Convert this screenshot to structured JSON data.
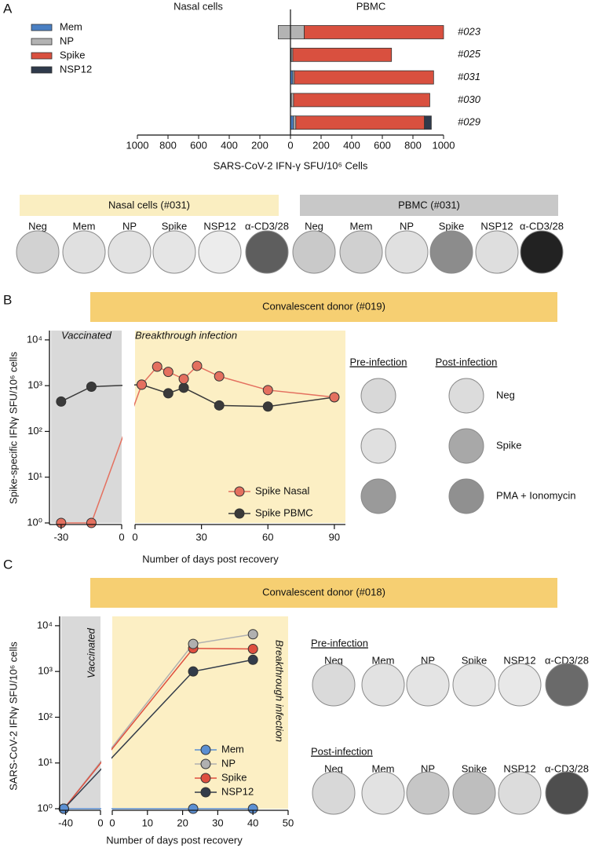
{
  "panel_labels": [
    "A",
    "B",
    "C"
  ],
  "chart_data": [
    {
      "type": "diverging_bar",
      "side_titles": [
        "Nasal cells",
        "PBMC"
      ],
      "categories": [
        "#023",
        "#025",
        "#031",
        "#030",
        "#029"
      ],
      "xlabel": "SARS-CoV-2 IFN-γ SFU/10⁶ Cells",
      "xlim": [
        -1000,
        1000
      ],
      "xticks": [
        {
          "value": -1000,
          "label": "1000"
        },
        {
          "value": -800,
          "label": "800"
        },
        {
          "value": -600,
          "label": "600"
        },
        {
          "value": -400,
          "label": "400"
        },
        {
          "value": -200,
          "label": "200"
        },
        0,
        200,
        400,
        600,
        800,
        1000
      ],
      "legend": "upper left",
      "series": [
        {
          "name": "Mem",
          "color": "#4a7fc3",
          "values": [
            0,
            5,
            15,
            5,
            20
          ],
          "nasal_values": [
            0,
            0,
            0,
            0,
            0
          ]
        },
        {
          "name": "NP",
          "color": "#b3b3b3",
          "values": [
            90,
            10,
            10,
            15,
            15
          ],
          "nasal_values": [
            80,
            0,
            0,
            0,
            0
          ]
        },
        {
          "name": "Spike",
          "color": "#d9503f",
          "values": [
            910,
            645,
            910,
            890,
            840
          ],
          "nasal_values": [
            0,
            0,
            0,
            0,
            0
          ]
        },
        {
          "name": "NSP12",
          "color": "#2f3a4b",
          "values": [
            0,
            0,
            0,
            0,
            45
          ],
          "nasal_values": [
            0,
            0,
            0,
            0,
            0
          ]
        }
      ]
    },
    {
      "type": "broken_line",
      "title": "Convalescent donor (#019)",
      "ylabel": "Spike-specific IFNγ SFU/10⁶ cells",
      "xlabel": "Number of days post recovery",
      "annotations": [
        "Vaccinated",
        "Breakthrough infection"
      ],
      "log_y": true,
      "ylim": [
        1,
        16000
      ],
      "yticks": [
        {
          "value": 1,
          "label": "10⁰"
        },
        {
          "value": 10,
          "label": "10¹"
        },
        {
          "value": 100,
          "label": "10²"
        },
        {
          "value": 1000,
          "label": "10³"
        },
        {
          "value": 10000,
          "label": "10⁴"
        }
      ],
      "segments": [
        {
          "xlim": [
            -35,
            0
          ],
          "xticks": [
            -30,
            0
          ]
        },
        {
          "xlim": [
            0,
            95
          ],
          "xticks": [
            0,
            30,
            60,
            90
          ]
        }
      ],
      "legend": "lower right",
      "series": [
        {
          "name": "Spike Nasal",
          "color": "#e4705f",
          "x": [
            -30,
            -15,
            3,
            10,
            15,
            22,
            28,
            38,
            60,
            90
          ],
          "values": [
            1,
            1,
            1050,
            2600,
            2000,
            1400,
            2700,
            1600,
            800,
            560
          ]
        },
        {
          "name": "Spike PBMC",
          "color": "#3a3a3a",
          "x": [
            -30,
            -15,
            3,
            15,
            22,
            38,
            60,
            90
          ],
          "values": [
            450,
            950,
            1050,
            680,
            900,
            370,
            350,
            560
          ]
        }
      ]
    },
    {
      "type": "broken_line",
      "title": "Convalescent donor (#018)",
      "ylabel": "SARS-CoV-2 IFNγ SFU/10⁶ cells",
      "xlabel": "Number of days post recovery",
      "annotations": [
        "Vaccinated",
        "Breakthrough infection"
      ],
      "log_y": true,
      "ylim": [
        1,
        16000
      ],
      "yticks": [
        {
          "value": 1,
          "label": "10⁰"
        },
        {
          "value": 10,
          "label": "10¹"
        },
        {
          "value": 100,
          "label": "10²"
        },
        {
          "value": 1000,
          "label": "10³"
        },
        {
          "value": 10000,
          "label": "10⁴"
        }
      ],
      "segments": [
        {
          "xlim": [
            -45,
            0
          ],
          "xticks": [
            -40,
            0
          ]
        },
        {
          "xlim": [
            0,
            50
          ],
          "xticks": [
            0,
            10,
            20,
            30,
            40,
            50
          ]
        }
      ],
      "legend": "lower right",
      "series": [
        {
          "name": "Mem",
          "color": "#5b8fd2",
          "x": [
            -42,
            23,
            40
          ],
          "values": [
            1,
            1,
            1
          ]
        },
        {
          "name": "NP",
          "color": "#b0b0b0",
          "x": [
            -42,
            23,
            40
          ],
          "values": [
            1,
            4000,
            6500
          ]
        },
        {
          "name": "Spike",
          "color": "#de4f3f",
          "x": [
            -42,
            23,
            40
          ],
          "values": [
            1,
            3200,
            3100
          ]
        },
        {
          "name": "NSP12",
          "color": "#333c4a",
          "x": [
            -42,
            23,
            40
          ],
          "values": [
            1,
            1000,
            1800
          ]
        }
      ]
    }
  ],
  "wells_a": [
    {
      "title": "Nasal cells (#031)",
      "labels": [
        "Neg",
        "Mem",
        "NP",
        "Spike",
        "NSP12",
        "α-CD3/28"
      ]
    },
    {
      "title": "PBMC (#031)",
      "labels": [
        "Neg",
        "Mem",
        "NP",
        "Spike",
        "NSP12",
        "α-CD3/28"
      ]
    }
  ],
  "wells_b": {
    "columns": [
      "Pre-infection",
      "Post-infection"
    ],
    "rows": [
      "Neg",
      "Spike",
      "PMA + Ionomycin"
    ]
  },
  "wells_c": [
    {
      "title": "Pre-infection",
      "labels": [
        "Neg",
        "Mem",
        "NP",
        "Spike",
        "NSP12",
        "α-CD3/28"
      ]
    },
    {
      "title": "Post-infection",
      "labels": [
        "Neg",
        "Mem",
        "NP",
        "Spike",
        "NSP12",
        "α-CD3/28"
      ]
    }
  ]
}
